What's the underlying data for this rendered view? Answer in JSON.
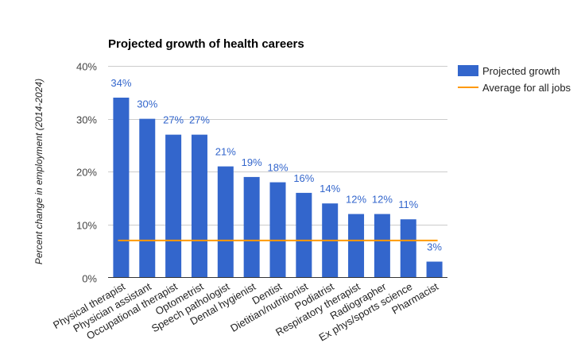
{
  "chart_data": {
    "type": "bar",
    "title": "Projected growth of health careers",
    "ylabel": "Percent change in employment (2014-2024)",
    "xlabel": "",
    "ylim": [
      0,
      40
    ],
    "yticks": [
      0,
      10,
      20,
      30,
      40
    ],
    "ytick_labels": [
      "0%",
      "10%",
      "20%",
      "30%",
      "40%"
    ],
    "grid": true,
    "legend_position": "right",
    "categories": [
      "Physical therapist",
      "Physician assistant",
      "Occupational therapist",
      "Optometrist",
      "Speech pathologist",
      "Dental hygienist",
      "Dentist",
      "Dietitian/nutritionist",
      "Podiatrist",
      "Respiratory therapist",
      "Radiographer",
      "Ex phys/sports science",
      "Pharmacist"
    ],
    "series": [
      {
        "name": "Projected growth",
        "type": "bar",
        "color": "#3366cc",
        "values": [
          34,
          30,
          27,
          27,
          21,
          19,
          18,
          16,
          14,
          12,
          12,
          11,
          3
        ],
        "labels": [
          "34%",
          "30%",
          "27%",
          "27%",
          "21%",
          "19%",
          "18%",
          "16%",
          "14%",
          "12%",
          "12%",
          "11%",
          "3%"
        ]
      },
      {
        "name": "Average for all jobs",
        "type": "line",
        "color": "#ff9900",
        "value": 7
      }
    ]
  }
}
